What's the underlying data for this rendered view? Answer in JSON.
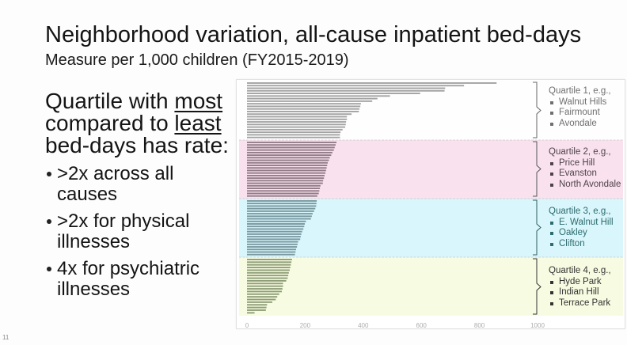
{
  "title": "Neighborhood variation, all-cause inpatient bed-days",
  "subtitle": "Measure per 1,000 children (FY2015-2019)",
  "left_panel": {
    "heading": {
      "line1_prefix": "Quartile with ",
      "line1_emphasis": "most",
      "line2_prefix": "compared to ",
      "line2_emphasis": "least",
      "line3": "bed-days has rate:"
    },
    "bullets": [
      ">2x across all causes",
      ">2x for physical illnesses",
      "4x for psychiatric illnesses"
    ]
  },
  "quartiles": [
    {
      "title": "Quartile 1, e.g.,",
      "examples": [
        "Walnut Hills",
        "Fairmount",
        "Avondale"
      ],
      "band_color": "#fefefe",
      "bar_color": "#a3a3a3",
      "text_color": "#6f6f6f"
    },
    {
      "title": "Quartile 2, e.g.,",
      "examples": [
        "Price Hill",
        "Evanston",
        "North Avondale"
      ],
      "band_color": "#f9e2ee",
      "bar_color": "#927c88",
      "text_color": "#4e4249"
    },
    {
      "title": "Quartile 3, e.g.,",
      "examples": [
        "E. Walnut Hill",
        "Oakley",
        "Clifton"
      ],
      "band_color": "#d8f6fb",
      "bar_color": "#7998a0",
      "text_color": "#2d6b6e"
    },
    {
      "title": "Quartile 4, e.g.,",
      "examples": [
        "Hyde Park",
        "Indian Hill",
        "Terrace Park"
      ],
      "band_color": "#f7fbe1",
      "bar_color": "#8f9e78",
      "text_color": "#333333"
    }
  ],
  "chart_data": {
    "type": "bar",
    "orientation": "horizontal",
    "title": "",
    "xlabel": "",
    "ylabel": "",
    "xlim": [
      0,
      1000
    ],
    "x_ticks": [
      0,
      200,
      400,
      600,
      800,
      1000
    ],
    "grid": false,
    "legend": "none",
    "series": [
      {
        "name": "Quartile 1",
        "values": [
          859,
          747,
          682,
          680,
          596,
          492,
          449,
          431,
          392,
          390,
          387,
          385,
          360,
          344,
          344,
          341,
          340,
          338,
          329,
          322,
          320,
          320
        ]
      },
      {
        "name": "Quartile 2",
        "values": [
          308,
          305,
          302,
          299,
          294,
          290,
          285,
          282,
          278,
          276,
          274,
          272,
          270,
          267,
          265,
          262,
          261,
          253,
          251,
          249,
          247,
          242
        ]
      },
      {
        "name": "Quartile 3",
        "values": [
          240,
          239,
          238,
          235,
          231,
          226,
          223,
          220,
          203,
          199,
          197,
          194,
          190,
          187,
          185,
          183,
          176,
          174,
          172,
          169,
          167,
          165
        ]
      },
      {
        "name": "Quartile 4",
        "values": [
          155,
          153,
          151,
          149,
          147,
          144,
          142,
          140,
          135,
          124,
          124,
          122,
          120,
          111,
          104,
          99,
          87,
          69,
          67,
          65,
          26
        ]
      }
    ]
  },
  "page_number": "11"
}
